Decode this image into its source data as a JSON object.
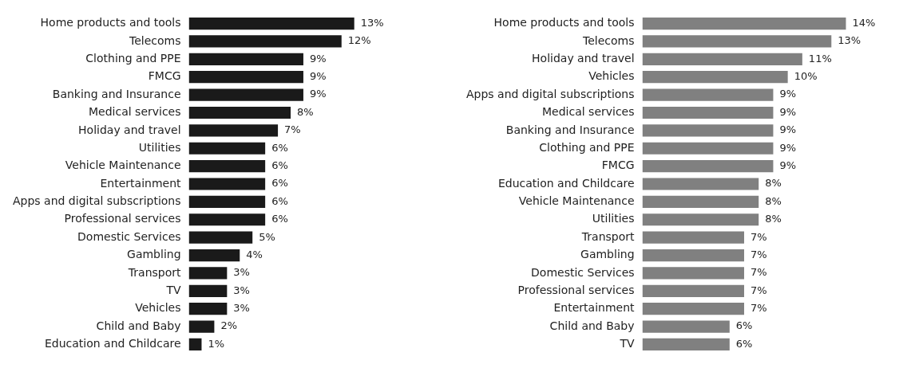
{
  "chart_data": [
    {
      "type": "bar",
      "orientation": "horizontal",
      "categories": [
        "Home products and tools",
        "Telecoms",
        "Clothing and PPE",
        "FMCG",
        "Banking and Insurance",
        "Medical services",
        "Holiday and travel",
        "Utilities",
        "Vehicle Maintenance",
        "Entertainment",
        "Apps and digital subscriptions",
        "Professional services",
        "Domestic Services",
        "Gambling",
        "Transport",
        "TV",
        "Vehicles",
        "Child and Baby",
        "Education and Childcare"
      ],
      "values": [
        13,
        12,
        9,
        9,
        9,
        8,
        7,
        6,
        6,
        6,
        6,
        6,
        5,
        4,
        3,
        3,
        3,
        2,
        1
      ],
      "value_labels": [
        "13%",
        "12%",
        "9%",
        "9%",
        "9%",
        "8%",
        "7%",
        "6%",
        "6%",
        "6%",
        "6%",
        "6%",
        "5%",
        "4%",
        "3%",
        "3%",
        "3%",
        "2%",
        "1%"
      ],
      "color": "#1a1a1a",
      "grid": false,
      "legend": false,
      "tick_labels": "y"
    },
    {
      "type": "bar",
      "orientation": "horizontal",
      "categories": [
        "Home products and tools",
        "Telecoms",
        "Holiday and travel",
        "Vehicles",
        "Apps and digital subscriptions",
        "Medical services",
        "Banking and Insurance",
        "Clothing and PPE",
        "FMCG",
        "Education and Childcare",
        "Vehicle Maintenance",
        "Utilities",
        "Transport",
        "Gambling",
        "Domestic Services",
        "Professional services",
        "Entertainment",
        "Child and Baby",
        "TV"
      ],
      "values": [
        14,
        13,
        11,
        10,
        9,
        9,
        9,
        9,
        9,
        8,
        8,
        8,
        7,
        7,
        7,
        7,
        7,
        6,
        6
      ],
      "value_labels": [
        "14%",
        "13%",
        "11%",
        "10%",
        "9%",
        "9%",
        "9%",
        "9%",
        "9%",
        "8%",
        "8%",
        "8%",
        "7%",
        "7%",
        "7%",
        "7%",
        "7%",
        "6%",
        "6%"
      ],
      "color": "#808080",
      "grid": false,
      "legend": false,
      "tick_labels": "y"
    }
  ]
}
